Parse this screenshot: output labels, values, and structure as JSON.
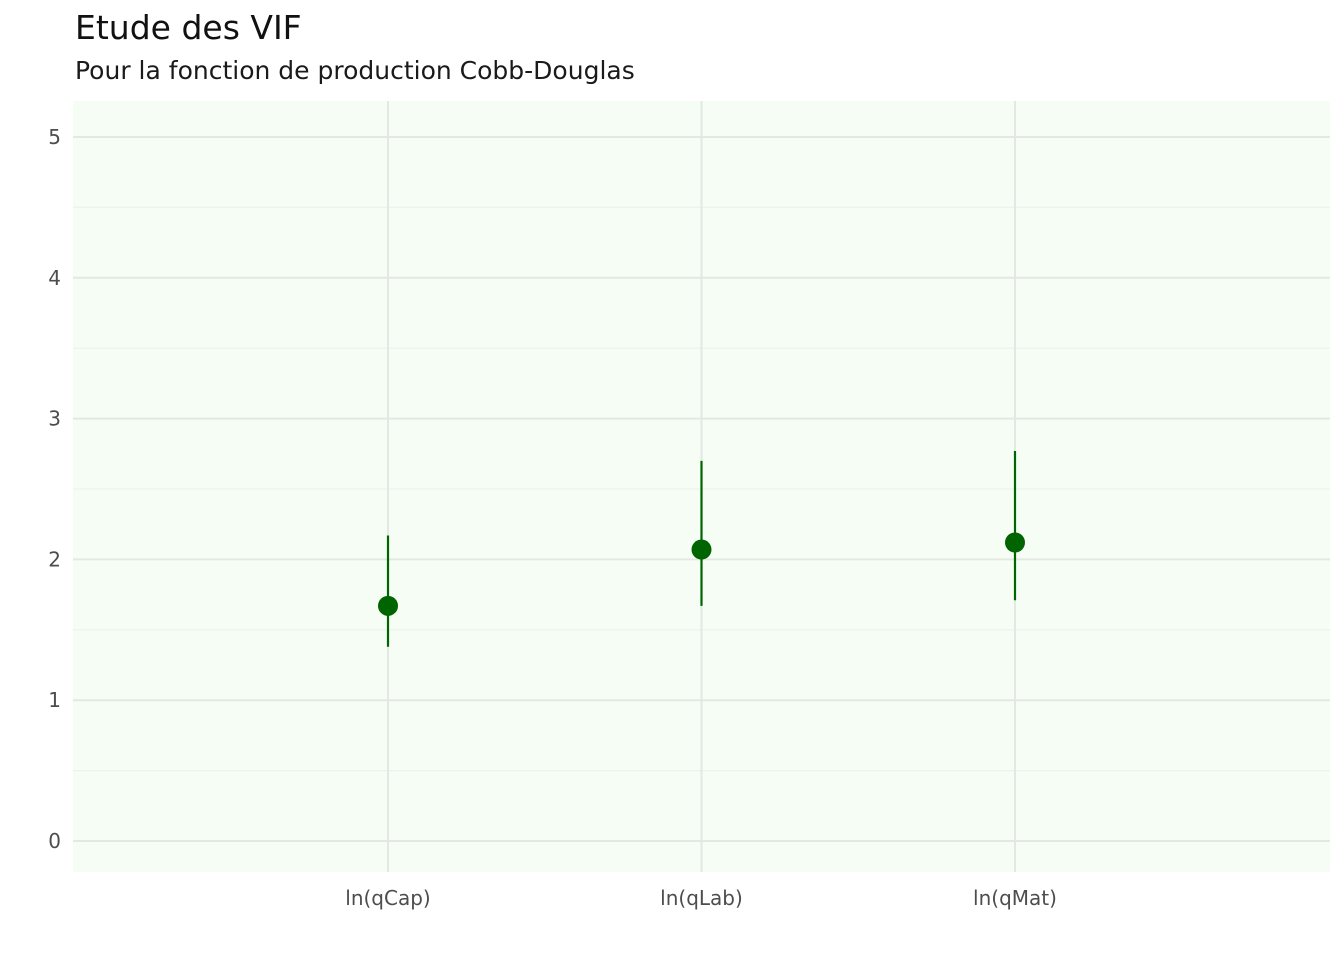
{
  "chart_data": {
    "type": "scatter",
    "title": "Etude des VIF",
    "subtitle": "Pour la fonction de production Cobb-Douglas",
    "xlabel": "",
    "ylabel": "",
    "categories": [
      "ln(qCap)",
      "ln(qLab)",
      "ln(qMat)"
    ],
    "series": [
      {
        "name": "VIF",
        "values": [
          1.67,
          2.07,
          2.12
        ],
        "lower": [
          1.38,
          1.67,
          1.71
        ],
        "upper": [
          2.17,
          2.7,
          2.77
        ]
      }
    ],
    "ylim": [
      0,
      5
    ],
    "yticks": [
      "0",
      "1",
      "2",
      "3",
      "4",
      "5"
    ],
    "grid": true,
    "colors": {
      "point": "#006400",
      "interval": "#006400",
      "panel": "#f5fdf5",
      "grid_major": "#e3e8e3",
      "grid_minor": "#eef2ee"
    }
  }
}
